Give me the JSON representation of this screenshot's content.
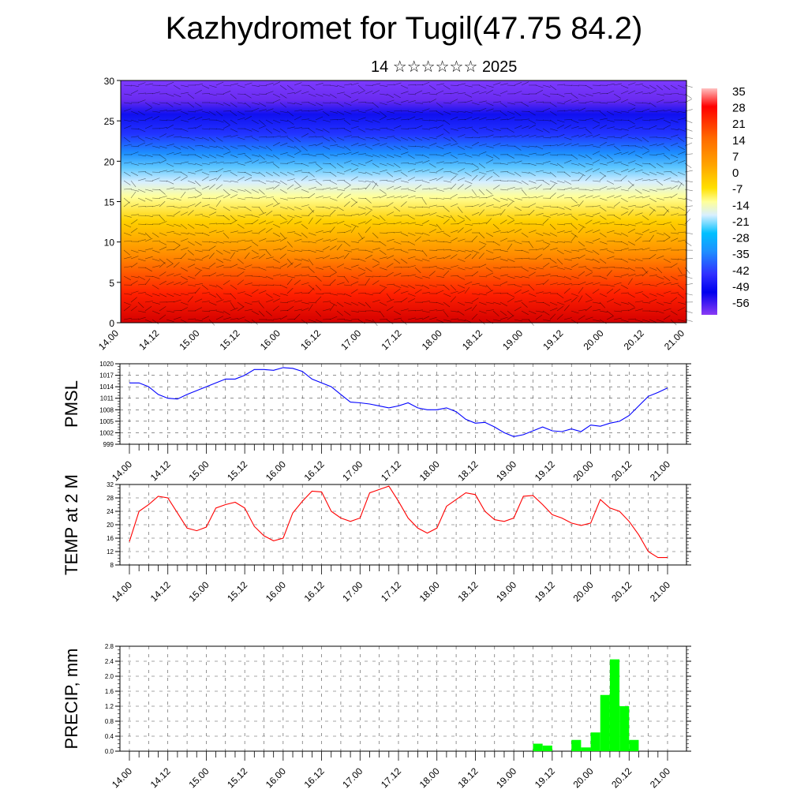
{
  "header": {
    "title": "Kazhydromet for Tugil(47.75 84.2)",
    "subtitle": "14 ☆☆☆☆☆☆ 2025"
  },
  "colors": {
    "pmsl_line": "#0000ff",
    "temp_line": "#ff0000",
    "precip_bar": "#00ff00",
    "colormap": [
      "#ff0000",
      "#ff6a00",
      "#ffa500",
      "#ffd700",
      "#ffff99",
      "#dff2ff",
      "#87cefa",
      "#00bfff",
      "#1e90ff",
      "#3b3bff",
      "#0000ff",
      "#7a2bff"
    ]
  },
  "chart_data": [
    {
      "type": "heatmap",
      "title": "",
      "ylim": [
        0,
        30
      ],
      "y_ticks": [
        "0",
        "5",
        "10",
        "15",
        "20",
        "25",
        "30"
      ],
      "x_ticks": [
        "14.00",
        "14.12",
        "15.00",
        "15.12",
        "16.00",
        "16.12",
        "17.00",
        "17.12",
        "18.00",
        "18.12",
        "19.00",
        "19.12",
        "20.00",
        "20.12",
        "21.00"
      ],
      "colorbar_labels": [
        "35",
        "28",
        "21",
        "14",
        "7",
        "0",
        "-7",
        "-14",
        "-21",
        "-28",
        "-35",
        "-42",
        "-49",
        "-56"
      ],
      "overlay": "wind barbs"
    },
    {
      "type": "line",
      "ylabel": "PMSL",
      "ylim": [
        999,
        1020
      ],
      "y_ticks": [
        "999",
        "1002",
        "1005",
        "1008",
        "1011",
        "1014",
        "1017",
        "1020"
      ],
      "x_ticks": [
        "14.00",
        "14.12",
        "15.00",
        "15.12",
        "16.00",
        "16.12",
        "17.00",
        "17.12",
        "18.00",
        "18.12",
        "19.00",
        "19.12",
        "20.00",
        "20.12",
        "21.00"
      ],
      "x": [
        0,
        3,
        6,
        9,
        12,
        15,
        18,
        21,
        24,
        27,
        30,
        33,
        36,
        39,
        42,
        45,
        48,
        51,
        54,
        57,
        60,
        63,
        66,
        69,
        72,
        75,
        78,
        81,
        84,
        87,
        90,
        93,
        96,
        99,
        102,
        105,
        108,
        111,
        114,
        117,
        120,
        123,
        126,
        129,
        132,
        135,
        138,
        141,
        144,
        147,
        150,
        153,
        156,
        159,
        162,
        165,
        168
      ],
      "values": [
        1015,
        1015,
        1014,
        1012,
        1011,
        1010.8,
        1012,
        1013,
        1014,
        1015,
        1016,
        1016,
        1017,
        1018.5,
        1018.5,
        1018.3,
        1019,
        1018.8,
        1018,
        1016,
        1015,
        1014,
        1012,
        1010,
        1009.8,
        1009.5,
        1009,
        1008.5,
        1009,
        1009.8,
        1008.5,
        1008,
        1008,
        1008.5,
        1007.5,
        1005.5,
        1004.5,
        1004.7,
        1003.5,
        1002,
        1001,
        1001.5,
        1002.5,
        1003.5,
        1002.5,
        1002.3,
        1003,
        1002.3,
        1004,
        1003.7,
        1004.5,
        1005,
        1006.5,
        1009,
        1011.5,
        1012.5,
        1013.7
      ]
    },
    {
      "type": "line",
      "ylabel": "TEMP at 2 M",
      "ylim": [
        8,
        32
      ],
      "y_ticks": [
        "8",
        "12",
        "16",
        "20",
        "24",
        "28",
        "32"
      ],
      "x_ticks": [
        "14.00",
        "14.12",
        "15.00",
        "15.12",
        "16.00",
        "16.12",
        "17.00",
        "17.12",
        "18.00",
        "18.12",
        "19.00",
        "19.12",
        "20.00",
        "20.12",
        "21.00"
      ],
      "x": [
        0,
        3,
        6,
        9,
        12,
        15,
        18,
        21,
        24,
        27,
        30,
        33,
        36,
        39,
        42,
        45,
        48,
        51,
        54,
        57,
        60,
        63,
        66,
        69,
        72,
        75,
        78,
        81,
        84,
        87,
        90,
        93,
        96,
        99,
        102,
        105,
        108,
        111,
        114,
        117,
        120,
        123,
        126,
        129,
        132,
        135,
        138,
        141,
        144,
        147,
        150,
        153,
        156,
        159,
        162,
        165,
        168
      ],
      "values": [
        15,
        24,
        26,
        28.5,
        28,
        23.5,
        19,
        18.2,
        19.3,
        25,
        26,
        26.7,
        25,
        19.5,
        16.7,
        15.2,
        16,
        23.5,
        27,
        30,
        29.8,
        24,
        22,
        21,
        22,
        29.5,
        30.5,
        31.5,
        27,
        22,
        19,
        17.5,
        19,
        25.5,
        27.5,
        29.5,
        29,
        24,
        21.5,
        21,
        22,
        28.5,
        28.7,
        26,
        23,
        22,
        20.5,
        19.8,
        20.5,
        27.5,
        25,
        24,
        21,
        17,
        12,
        10.2,
        10.2
      ]
    },
    {
      "type": "bar",
      "ylabel": "PRECIP, mm",
      "ylim": [
        0,
        2.8
      ],
      "y_ticks": [
        "0.0",
        "0.4",
        "0.8",
        "1.2",
        "1.6",
        "2.0",
        "2.4",
        "2.8"
      ],
      "x_ticks": [
        "14.00",
        "14.12",
        "15.00",
        "15.12",
        "16.00",
        "16.12",
        "17.00",
        "17.12",
        "18.00",
        "18.12",
        "19.00",
        "19.12",
        "20.00",
        "20.12",
        "21.00"
      ],
      "bars": [
        {
          "x0": 126,
          "x1": 129,
          "value": 0.2
        },
        {
          "x0": 129,
          "x1": 132,
          "value": 0.15
        },
        {
          "x0": 138,
          "x1": 141,
          "value": 0.3
        },
        {
          "x0": 141,
          "x1": 144,
          "value": 0.1
        },
        {
          "x0": 144,
          "x1": 147,
          "value": 0.5
        },
        {
          "x0": 147,
          "x1": 150,
          "value": 1.5
        },
        {
          "x0": 150,
          "x1": 153,
          "value": 2.45
        },
        {
          "x0": 153,
          "x1": 156,
          "value": 1.2
        },
        {
          "x0": 156,
          "x1": 159,
          "value": 0.3
        }
      ]
    }
  ]
}
